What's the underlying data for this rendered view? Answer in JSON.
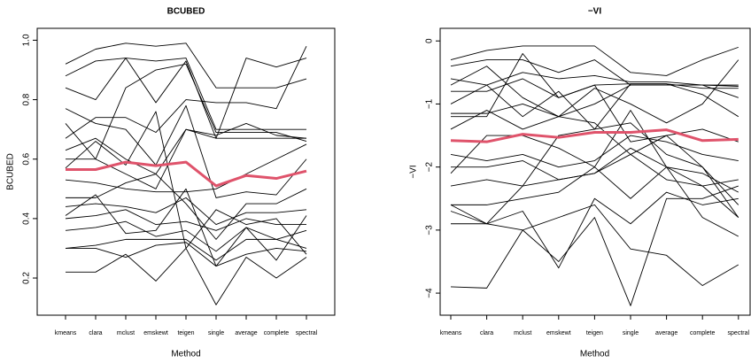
{
  "chart_data": [
    {
      "type": "line",
      "title": "BCUBED",
      "xlabel": "Method",
      "ylabel": "BCUBED",
      "categories": [
        "kmeans",
        "clara",
        "mclust",
        "emskewt",
        "teigen",
        "single",
        "average",
        "complete",
        "spectral"
      ],
      "ylim": [
        0.075,
        1.04
      ],
      "yticks": [
        0.2,
        0.4,
        0.6,
        0.8,
        {
          "value": 1,
          "label": "1.0"
        }
      ],
      "series": [
        {
          "color": "#000000",
          "values": [
            0.92,
            0.97,
            0.99,
            0.98,
            0.99,
            0.84,
            0.84,
            0.84,
            0.87
          ]
        },
        {
          "color": "#000000",
          "values": [
            0.88,
            0.93,
            0.94,
            0.93,
            0.94,
            0.7,
            0.7,
            0.7,
            0.7
          ]
        },
        {
          "color": "#000000",
          "values": [
            0.84,
            0.8,
            0.94,
            0.79,
            0.93,
            0.67,
            0.94,
            0.91,
            0.94
          ]
        },
        {
          "color": "#000000",
          "values": [
            0.72,
            0.6,
            0.84,
            0.9,
            0.92,
            0.69,
            0.69,
            0.69,
            0.66
          ]
        },
        {
          "color": "#000000",
          "values": [
            0.67,
            0.74,
            0.74,
            0.69,
            0.8,
            0.79,
            0.79,
            0.77,
            0.98
          ]
        },
        {
          "color": "#000000",
          "values": [
            0.63,
            0.67,
            0.6,
            0.55,
            0.7,
            0.68,
            0.72,
            0.68,
            0.67
          ]
        },
        {
          "color": "#000000",
          "values": [
            0.6,
            0.6,
            0.55,
            0.5,
            0.7,
            0.67,
            0.67,
            0.67,
            0.67
          ]
        },
        {
          "color": "#000000",
          "values": [
            0.53,
            0.52,
            0.5,
            0.49,
            0.49,
            0.5,
            0.55,
            0.6,
            0.65
          ]
        },
        {
          "color": "#000000",
          "values": [
            0.47,
            0.47,
            0.52,
            0.55,
            0.45,
            0.33,
            0.45,
            0.45,
            0.5
          ]
        },
        {
          "color": "#000000",
          "values": [
            0.44,
            0.45,
            0.44,
            0.42,
            0.47,
            0.38,
            0.42,
            0.42,
            0.43
          ]
        },
        {
          "color": "#000000",
          "values": [
            0.4,
            0.41,
            0.43,
            0.38,
            0.39,
            0.36,
            0.4,
            0.38,
            0.38
          ]
        },
        {
          "color": "#000000",
          "values": [
            0.36,
            0.37,
            0.39,
            0.34,
            0.36,
            0.29,
            0.37,
            0.33,
            0.36
          ]
        },
        {
          "color": "#000000",
          "values": [
            0.3,
            0.31,
            0.33,
            0.33,
            0.33,
            0.26,
            0.33,
            0.33,
            0.3
          ]
        },
        {
          "color": "#000000",
          "values": [
            0.3,
            0.3,
            0.27,
            0.31,
            0.32,
            0.24,
            0.28,
            0.3,
            0.29
          ]
        },
        {
          "color": "#000000",
          "values": [
            0.22,
            0.22,
            0.28,
            0.19,
            0.3,
            0.11,
            0.27,
            0.2,
            0.27
          ]
        },
        {
          "color": "#000000",
          "values": [
            0.57,
            0.66,
            0.58,
            0.76,
            0.3,
            0.43,
            0.38,
            0.4,
            0.28
          ]
        },
        {
          "color": "#000000",
          "values": [
            0.77,
            0.72,
            0.7,
            0.58,
            0.78,
            0.47,
            0.49,
            0.48,
            0.6
          ]
        },
        {
          "color": "#000000",
          "values": [
            0.41,
            0.48,
            0.35,
            0.36,
            0.5,
            0.24,
            0.37,
            0.26,
            0.41
          ]
        },
        {
          "color": "#df536b",
          "line_width": 3,
          "values": [
            0.565,
            0.565,
            0.59,
            0.578,
            0.59,
            0.51,
            0.545,
            0.535,
            0.56
          ]
        }
      ]
    },
    {
      "type": "line",
      "title": "−VI",
      "xlabel": "Method",
      "ylabel": "−VI",
      "categories": [
        "kmeans",
        "clara",
        "mclust",
        "emskewt",
        "teigen",
        "single",
        "average",
        "complete",
        "spectral"
      ],
      "ylim": [
        -4.35,
        0.2
      ],
      "yticks": [
        {
          "value": -4,
          "label": "−4"
        },
        {
          "value": -3,
          "label": "−3"
        },
        {
          "value": -2,
          "label": "−2"
        },
        {
          "value": -1,
          "label": "−1"
        },
        0
      ],
      "series": [
        {
          "color": "#000000",
          "values": [
            -0.3,
            -0.15,
            -0.08,
            -0.08,
            -0.08,
            -0.5,
            -0.55,
            -0.3,
            -0.1
          ]
        },
        {
          "color": "#000000",
          "values": [
            -0.4,
            -0.3,
            -0.3,
            -0.5,
            -0.3,
            -0.7,
            -0.7,
            -0.7,
            -0.7
          ]
        },
        {
          "color": "#000000",
          "values": [
            -0.6,
            -0.7,
            -0.5,
            -0.6,
            -0.55,
            -0.65,
            -0.65,
            -0.7,
            -0.9
          ]
        },
        {
          "color": "#000000",
          "values": [
            -0.8,
            -0.8,
            -0.6,
            -0.9,
            -0.7,
            -0.68,
            -0.68,
            -0.75,
            -0.75
          ]
        },
        {
          "color": "#000000",
          "values": [
            -1.0,
            -0.7,
            -1.2,
            -0.8,
            -1.4,
            -0.68,
            -0.68,
            -0.85,
            -1.2
          ]
        },
        {
          "color": "#000000",
          "values": [
            -1.15,
            -1.15,
            -1.0,
            -1.2,
            -1.0,
            -0.7,
            -0.7,
            -0.7,
            -0.72
          ]
        },
        {
          "color": "#000000",
          "values": [
            -1.4,
            -1.1,
            -1.4,
            -1.2,
            -1.3,
            -1.8,
            -1.5,
            -2.0,
            -2.6
          ]
        },
        {
          "color": "#000000",
          "values": [
            -1.8,
            -1.9,
            -1.8,
            -2.0,
            -1.9,
            -1.5,
            -1.6,
            -1.8,
            -1.9
          ]
        },
        {
          "color": "#000000",
          "values": [
            -2.0,
            -2.0,
            -1.9,
            -2.2,
            -2.1,
            -1.7,
            -2.0,
            -2.1,
            -2.4
          ]
        },
        {
          "color": "#000000",
          "values": [
            -2.3,
            -2.2,
            -2.3,
            -2.2,
            -2.1,
            -1.8,
            -2.2,
            -2.3,
            -2.2
          ]
        },
        {
          "color": "#000000",
          "values": [
            -2.6,
            -2.6,
            -2.5,
            -2.4,
            -2.0,
            -2.5,
            -2.0,
            -2.8,
            -3.1
          ]
        },
        {
          "color": "#000000",
          "values": [
            -2.7,
            -2.9,
            -2.7,
            -3.6,
            -2.5,
            -2.9,
            -2.4,
            -2.6,
            -2.5
          ]
        },
        {
          "color": "#000000",
          "values": [
            -2.9,
            -2.9,
            -3.0,
            -3.5,
            -2.8,
            -4.2,
            -2.5,
            -2.5,
            -2.3
          ]
        },
        {
          "color": "#000000",
          "values": [
            -3.9,
            -3.92,
            -3.0,
            -2.8,
            -2.6,
            -3.3,
            -3.4,
            -3.88,
            -3.55
          ]
        },
        {
          "color": "#000000",
          "values": [
            -2.1,
            -1.5,
            -1.5,
            -1.7,
            -2.0,
            -1.1,
            -2.0,
            -2.3,
            -2.8
          ]
        },
        {
          "color": "#000000",
          "values": [
            -0.7,
            -0.4,
            -0.9,
            -1.2,
            -0.75,
            -1.0,
            -1.3,
            -1.0,
            -0.3
          ]
        },
        {
          "color": "#000000",
          "values": [
            -1.2,
            -1.2,
            -0.2,
            -0.9,
            -0.7,
            -1.6,
            -1.5,
            -1.4,
            -1.6
          ]
        },
        {
          "color": "#000000",
          "values": [
            -2.6,
            -2.9,
            -2.3,
            -1.5,
            -1.4,
            -1.3,
            -1.8,
            -2.0,
            -2.8
          ]
        },
        {
          "color": "#df536b",
          "line_width": 3,
          "values": [
            -1.58,
            -1.6,
            -1.48,
            -1.53,
            -1.45,
            -1.45,
            -1.41,
            -1.58,
            -1.56
          ]
        }
      ]
    }
  ]
}
